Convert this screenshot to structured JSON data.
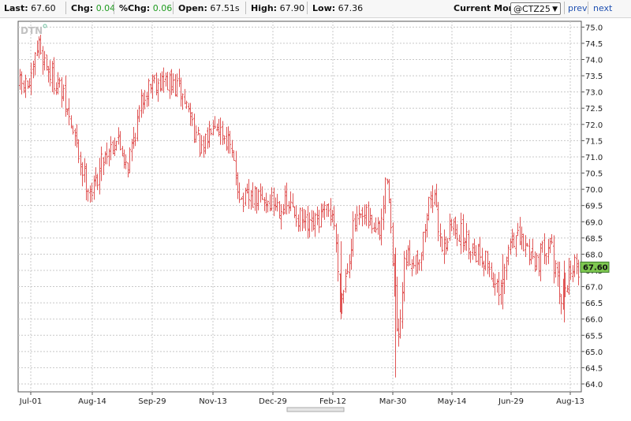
{
  "quote": {
    "last_label": "Last:",
    "last_value": "67.60",
    "chg_label": "Chg:",
    "chg_value": "0.04",
    "pctchg_label": "%Chg:",
    "pctchg_value": "0.06",
    "open_label": "Open:",
    "open_value": "67.51s",
    "high_label": "High:",
    "high_value": "67.90",
    "low_label": "Low:",
    "low_value": "67.36"
  },
  "controls": {
    "current_month_label": "Current Month:",
    "contract": "@CTZ25",
    "prev_label": "prev",
    "next_label": "next"
  },
  "watermark": "DTN",
  "last_price_tag": "67.60",
  "colors": {
    "bars": "#e05555",
    "tag": "#7ec850",
    "grid": "#c8c8c8",
    "value_green": "#1e9b1e"
  },
  "chart_data": {
    "type": "ohlc",
    "symbol": "@CTZ25",
    "x_tick_labels": [
      "Jul-01",
      "Aug-14",
      "Sep-29",
      "Nov-13",
      "Dec-29",
      "Feb-12",
      "Mar-30",
      "May-14",
      "Jun-29",
      "Aug-13"
    ],
    "y_ticks": [
      "64.0",
      "64.5",
      "65.0",
      "65.5",
      "66.0",
      "66.5",
      "67.0",
      "67.5",
      "68.0",
      "68.5",
      "69.0",
      "69.5",
      "70.0",
      "70.5",
      "71.0",
      "71.5",
      "72.0",
      "72.5",
      "73.0",
      "73.5",
      "74.0",
      "74.5",
      "75.0"
    ],
    "ylim": [
      63.7,
      75.3
    ],
    "grid": true,
    "last": 67.6,
    "price_path_approx": [
      {
        "date": "Jul-01",
        "close": 73.2
      },
      {
        "date": "Jul-06",
        "close": 74.5
      },
      {
        "date": "Jul-14",
        "close": 73.6
      },
      {
        "date": "Jul-22",
        "close": 73.1
      },
      {
        "date": "Aug-01",
        "close": 71.6
      },
      {
        "date": "Aug-08",
        "close": 70.4
      },
      {
        "date": "Aug-14",
        "close": 69.9
      },
      {
        "date": "Aug-22",
        "close": 71.0
      },
      {
        "date": "Sep-01",
        "close": 71.6
      },
      {
        "date": "Sep-10",
        "close": 70.8
      },
      {
        "date": "Sep-22",
        "close": 72.9
      },
      {
        "date": "Sep-29",
        "close": 73.4
      },
      {
        "date": "Oct-10",
        "close": 73.3
      },
      {
        "date": "Oct-20",
        "close": 73.0
      },
      {
        "date": "Oct-27",
        "close": 72.3
      },
      {
        "date": "Nov-05",
        "close": 71.0
      },
      {
        "date": "Nov-13",
        "close": 72.3
      },
      {
        "date": "Nov-25",
        "close": 71.4
      },
      {
        "date": "Dec-05",
        "close": 69.6
      },
      {
        "date": "Dec-15",
        "close": 69.7
      },
      {
        "date": "Dec-29",
        "close": 69.6
      },
      {
        "date": "Jan-12",
        "close": 69.4
      },
      {
        "date": "Jan-25",
        "close": 68.7
      },
      {
        "date": "Feb-05",
        "close": 69.2
      },
      {
        "date": "Feb-12",
        "close": 69.3
      },
      {
        "date": "Feb-18",
        "close": 66.5
      },
      {
        "date": "Feb-28",
        "close": 68.9
      },
      {
        "date": "Mar-10",
        "close": 69.1
      },
      {
        "date": "Mar-20",
        "close": 68.6
      },
      {
        "date": "Mar-26",
        "close": 70.7
      },
      {
        "date": "Mar-30",
        "close": 67.5
      },
      {
        "date": "Apr-03",
        "close": 65.0
      },
      {
        "date": "Apr-08",
        "close": 67.8
      },
      {
        "date": "Apr-20",
        "close": 68.0
      },
      {
        "date": "Apr-28",
        "close": 70.0
      },
      {
        "date": "May-07",
        "close": 68.2
      },
      {
        "date": "May-14",
        "close": 68.9
      },
      {
        "date": "May-28",
        "close": 68.3
      },
      {
        "date": "Jun-10",
        "close": 67.8
      },
      {
        "date": "Jun-20",
        "close": 66.6
      },
      {
        "date": "Jun-29",
        "close": 68.6
      },
      {
        "date": "Jul-10",
        "close": 68.2
      },
      {
        "date": "Jul-20",
        "close": 67.8
      },
      {
        "date": "Jul-28",
        "close": 68.6
      },
      {
        "date": "Aug-05",
        "close": 66.5
      },
      {
        "date": "Aug-13",
        "close": 67.6
      },
      {
        "date": "Aug-20",
        "close": 67.6
      }
    ]
  }
}
